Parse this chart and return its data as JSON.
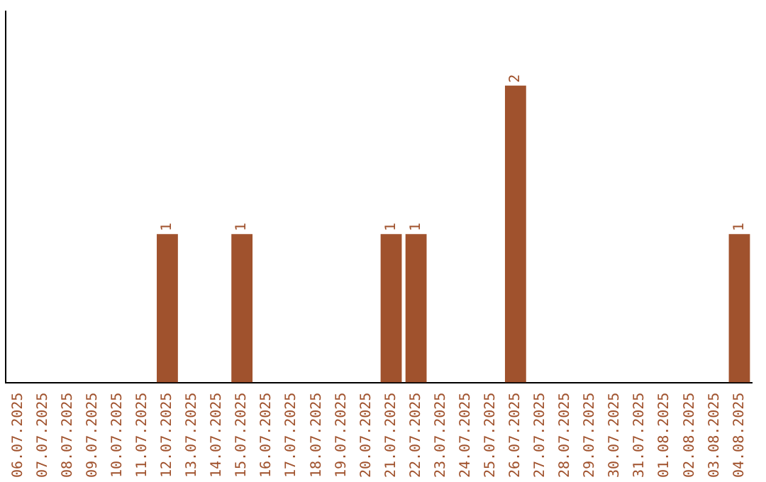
{
  "chart_data": {
    "type": "bar",
    "categories": [
      "06.07.2025",
      "07.07.2025",
      "08.07.2025",
      "09.07.2025",
      "10.07.2025",
      "11.07.2025",
      "12.07.2025",
      "13.07.2025",
      "14.07.2025",
      "15.07.2025",
      "16.07.2025",
      "17.07.2025",
      "18.07.2025",
      "19.07.2025",
      "20.07.2025",
      "21.07.2025",
      "22.07.2025",
      "23.07.2025",
      "24.07.2025",
      "25.07.2025",
      "26.07.2025",
      "27.07.2025",
      "28.07.2025",
      "29.07.2025",
      "30.07.2025",
      "31.07.2025",
      "01.08.2025",
      "02.08.2025",
      "03.08.2025",
      "04.08.2025"
    ],
    "values": [
      0,
      0,
      0,
      0,
      0,
      0,
      1,
      0,
      0,
      1,
      0,
      0,
      0,
      0,
      0,
      1,
      1,
      0,
      0,
      0,
      2,
      0,
      0,
      0,
      0,
      0,
      0,
      0,
      0,
      1
    ],
    "value_labels": [
      null,
      null,
      null,
      null,
      null,
      null,
      "1",
      null,
      null,
      "1",
      null,
      null,
      null,
      null,
      null,
      "1",
      "1",
      null,
      null,
      null,
      "2",
      null,
      null,
      null,
      null,
      null,
      null,
      null,
      null,
      "1"
    ],
    "color": "#a0522d",
    "grid": false,
    "legend": false
  }
}
